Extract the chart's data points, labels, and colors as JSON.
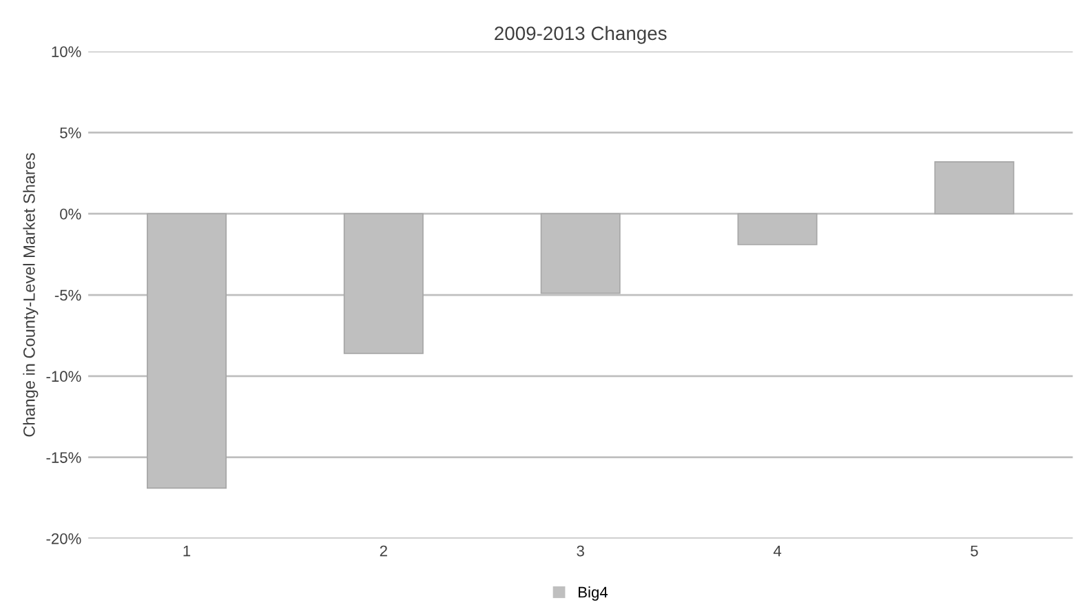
{
  "chart_data": {
    "type": "bar",
    "title": "2009-2013 Changes",
    "ylabel": "Change in County-Level Market Shares",
    "categories": [
      "1",
      "2",
      "3",
      "4",
      "5"
    ],
    "series": [
      {
        "name": "Big4",
        "color": "#bfbfbf",
        "values": [
          -16.9,
          -8.6,
          -4.9,
          -1.9,
          3.2
        ]
      }
    ],
    "ylim": [
      -20,
      10
    ],
    "yticks": [
      {
        "value": -20,
        "label": "-20%"
      },
      {
        "value": -15,
        "label": "-15%"
      },
      {
        "value": -10,
        "label": "-10%"
      },
      {
        "value": -5,
        "label": "-5%"
      },
      {
        "value": 0,
        "label": "0%"
      },
      {
        "value": 5,
        "label": "5%"
      },
      {
        "value": 10,
        "label": "10%"
      }
    ],
    "grid": "y",
    "legend": "bottom"
  }
}
